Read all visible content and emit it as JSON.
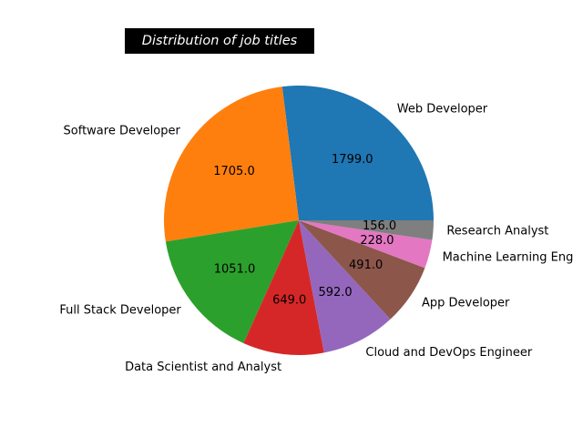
{
  "chart_data": {
    "type": "pie",
    "title": "Distribution of job titles",
    "categories": [
      "Web Developer",
      "Software Developer",
      "Full Stack Developer",
      "Data Scientist and Analyst",
      "Cloud and DevOps Engineer",
      "App Developer",
      "Machine Learning Engineer",
      "Research Analyst"
    ],
    "visible_labels": [
      "Web Developer",
      "Software Developer",
      "Full Stack Developer",
      "Data Scientist and Analyst",
      "Cloud and DevOps Engineer",
      "App Developer",
      "Machine Learning Eng",
      "Research Analyst"
    ],
    "values": [
      1799.0,
      1705.0,
      1051.0,
      649.0,
      592.0,
      491.0,
      228.0,
      156.0
    ],
    "value_labels": [
      "1799.0",
      "1705.0",
      "1051.0",
      "649.0",
      "592.0",
      "491.0",
      "228.0",
      "156.0"
    ],
    "colors": [
      "#1f77b4",
      "#ff7f0e",
      "#2ca02c",
      "#d62728",
      "#9467bd",
      "#8c564b",
      "#e377c2",
      "#7f7f7f"
    ],
    "start_angle_deg": 0,
    "direction": "counterclockwise",
    "legend": "none"
  }
}
